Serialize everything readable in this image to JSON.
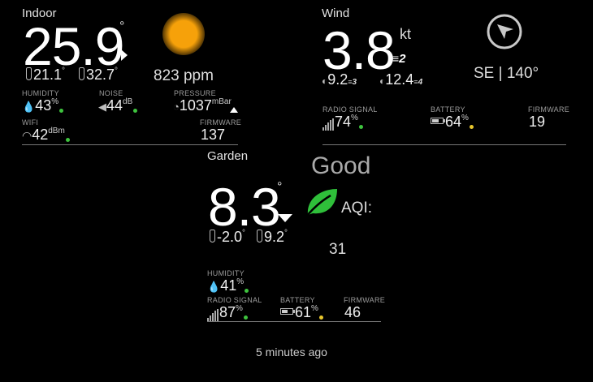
{
  "indoor": {
    "title": "Indoor",
    "temperature": "25.9",
    "deg": "°",
    "min_temp": "21.1",
    "max_temp": "32.7",
    "temp_deg": "°",
    "co2": "823 ppm",
    "humidity_label": "HUMIDITY",
    "humidity_value": "43",
    "humidity_unit": "%",
    "noise_label": "NOISE",
    "noise_value": "44",
    "noise_unit": "dB",
    "pressure_label": "PRESSURE",
    "pressure_value": "1037",
    "pressure_unit": "mBar",
    "wifi_label": "WIFI",
    "wifi_value": "42",
    "wifi_unit": "dBm",
    "firmware_label": "FIRMWARE",
    "firmware_value": "137"
  },
  "wind": {
    "title": "Wind",
    "speed": "3.8",
    "unit": "kt",
    "beaufort": "2",
    "gust_speed": "9.2",
    "gust_beaufort": "3",
    "max_speed": "12.4",
    "max_beaufort": "4",
    "direction": "SE | 140°",
    "radio_label": "RADIO SIGNAL",
    "radio_value": "74",
    "radio_unit": "%",
    "battery_label": "BATTERY",
    "battery_value": "64",
    "battery_unit": "%",
    "battery_level": 0.64,
    "firmware_label": "FIRMWARE",
    "firmware_value": "19"
  },
  "garden": {
    "title": "Garden",
    "temperature": "8.3",
    "deg": "°",
    "min_temp": "-2.0",
    "max_temp": "9.2",
    "temp_deg": "°",
    "air_quality": "Good",
    "aqi_label": "AQI:",
    "aqi_value": "31",
    "humidity_label": "HUMIDITY",
    "humidity_value": "41",
    "humidity_unit": "%",
    "radio_label": "RADIO SIGNAL",
    "radio_value": "87",
    "radio_unit": "%",
    "battery_label": "BATTERY",
    "battery_value": "61",
    "battery_unit": "%",
    "battery_level": 0.61,
    "firmware_label": "FIRMWARE",
    "firmware_value": "46"
  },
  "footer": {
    "updated": "5 minutes ago"
  },
  "colors": {
    "status_ok": "#3ec33e",
    "status_warn": "#e8c72d",
    "sun": "#f5a30a",
    "leaf": "#2fbf3a"
  }
}
